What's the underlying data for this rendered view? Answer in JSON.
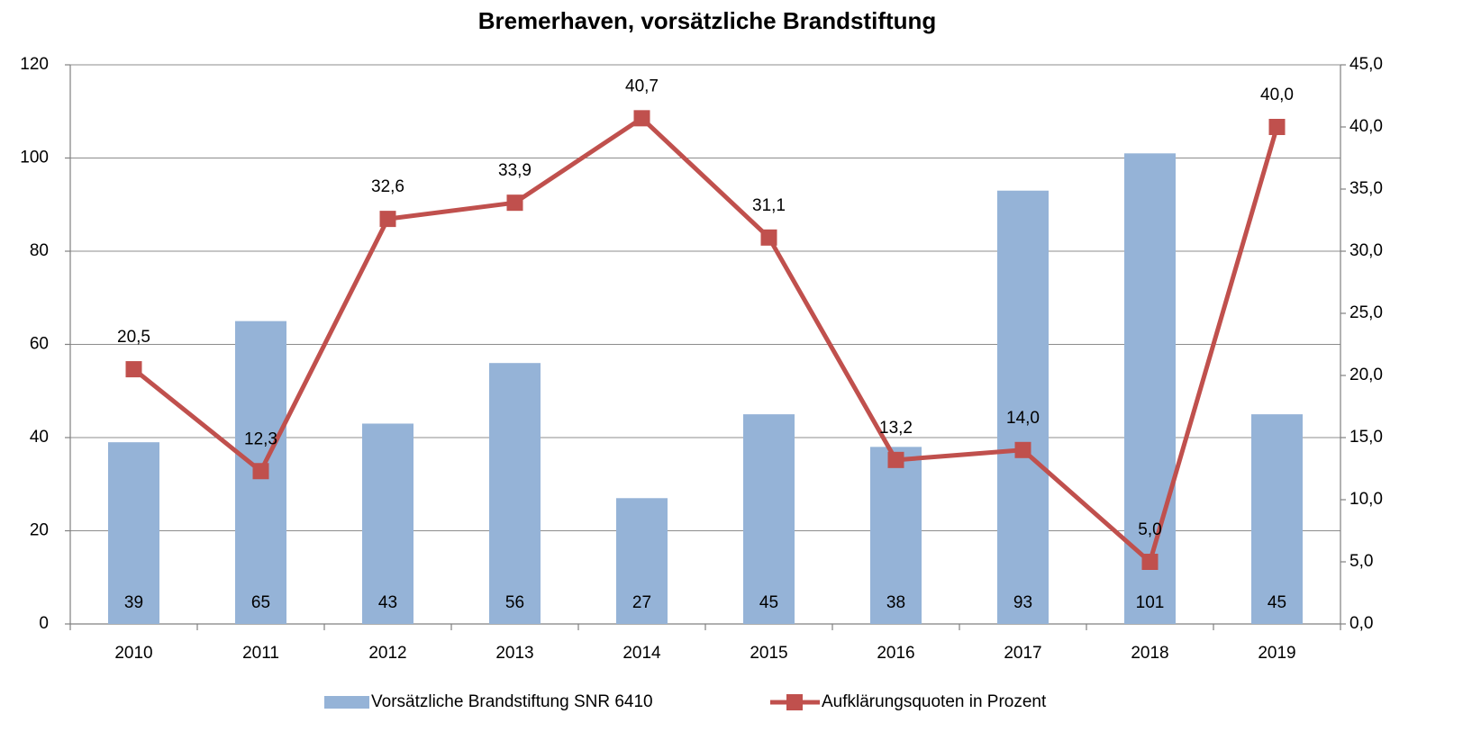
{
  "chart_data": {
    "type": "bar_line",
    "title": "Bremerhaven, vorsätzliche Brandstiftung",
    "categories": [
      "2010",
      "2011",
      "2012",
      "2013",
      "2014",
      "2015",
      "2016",
      "2017",
      "2018",
      "2019"
    ],
    "series": [
      {
        "name": "Vorsätzliche Brandstiftung SNR 6410",
        "type": "bar",
        "color": "#95b3d7",
        "values": [
          39,
          65,
          43,
          56,
          27,
          45,
          38,
          93,
          101,
          45
        ]
      },
      {
        "name": "Aufklärungsquoten in Prozent",
        "type": "line",
        "axis": "y2",
        "color": "#c0504d",
        "values": [
          20.5,
          12.3,
          32.6,
          33.9,
          40.7,
          31.1,
          13.2,
          14.0,
          5.0,
          40.0
        ],
        "value_labels": [
          "20,5",
          "12,3",
          "32,6",
          "33,9",
          "40,7",
          "31,1",
          "13,2",
          "14,0",
          "5,0",
          "40,0"
        ]
      }
    ],
    "ylim": [
      0,
      120
    ],
    "yticks": [
      0,
      20,
      40,
      60,
      80,
      100,
      120
    ],
    "y2lim": [
      0,
      45
    ],
    "y2ticks": [
      {
        "value": 0,
        "label": "0,0"
      },
      {
        "value": 5,
        "label": "5,0"
      },
      {
        "value": 10,
        "label": "10,0"
      },
      {
        "value": 15,
        "label": "15,0"
      },
      {
        "value": 20,
        "label": "20,0"
      },
      {
        "value": 25,
        "label": "25,0"
      },
      {
        "value": 30,
        "label": "30,0"
      },
      {
        "value": 35,
        "label": "35,0"
      },
      {
        "value": 40,
        "label": "40,0"
      },
      {
        "value": 45,
        "label": "45,0"
      }
    ],
    "grid": true,
    "legend": "bottom"
  }
}
